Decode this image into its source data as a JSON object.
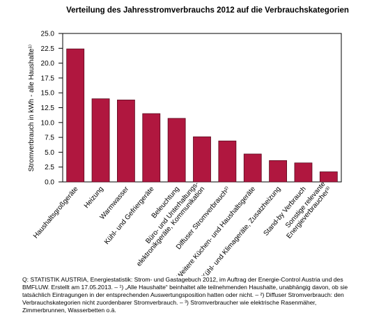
{
  "chart_data": {
    "type": "bar",
    "title": "Verteilung des Jahresstromverbrauchs 2012 auf die Verbrauchskategorien",
    "y_label": "Stromverbrauch in kWh - alle Haushalte¹⁾",
    "categories": [
      "Haushaltsgroßgeräte",
      "Heizung",
      "Warmwasser",
      "Kühl- und Gefriergeräte",
      "Beleuchtung",
      "Büro- und Unterhaltungs-\nelektronikgeräte, Kommunikation",
      "Diffuser Stromverbrauch²⁾",
      "Weitere Küchen- und Haushaltsgeräte",
      "Kühl- und Klimageräte, Zusatzheizung",
      "Stand-by Verbrauch",
      "Sonstige relevante\nEnergieverbraucher³⁾"
    ],
    "values": [
      22.4,
      14.0,
      13.8,
      11.5,
      10.7,
      7.6,
      6.9,
      4.7,
      3.6,
      3.2,
      1.7
    ],
    "color": "#b0173f",
    "ylim": [
      0,
      25
    ],
    "yticks": [
      {
        "value": 0,
        "label": "0.0"
      },
      2.5,
      {
        "value": 5,
        "label": "5.0"
      },
      7.5,
      {
        "value": 10,
        "label": "10.0"
      },
      12.5,
      {
        "value": 15,
        "label": "15.0"
      },
      17.5,
      {
        "value": 20,
        "label": "20.0"
      },
      22.5,
      {
        "value": 25,
        "label": "25.0"
      }
    ],
    "grid": false,
    "note": "Q: STATISTIK AUSTRIA, Energiestatistik: Strom- und Gastagebuch 2012, im Auftrag der Energie-Control Austria und des BMFLUW. Erstellt am 17.05.2013. – ¹) „Alle Haushalte“ beinhaltet alle teilnehmenden Haushalte, unabhängig davon, ob sie tatsächlich Eintragungen in der entsprechenden Auswertungsposition hatten oder nicht. – ²) Diffuser Stromverbrauch: den Verbrauchskategorien nicht zuordenbarer Stromverbrauch. – ³) Stromverbraucher wie elektrische Rasenmäher, Zimmerbrunnen, Wasserbetten o.ä."
  }
}
